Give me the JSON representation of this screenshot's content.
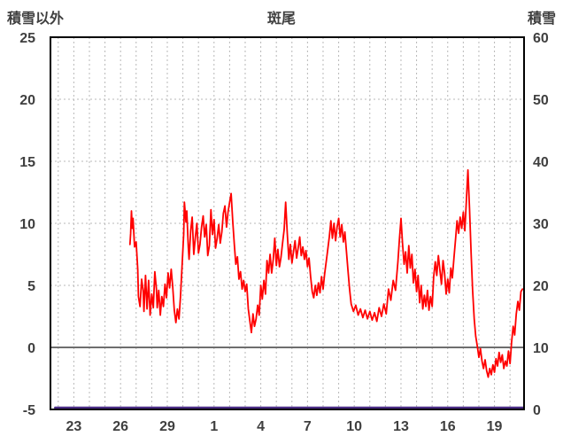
{
  "header": {
    "left_axis_label": "積雪以外",
    "title": "斑尾",
    "right_axis_label": "積雪"
  },
  "colors": {
    "background": "#ffffff",
    "border": "#000000",
    "grid": "#b8b8b8",
    "zero_line": "#6e6e6e",
    "label": "#3f3f3f",
    "series_red": "#ff0000",
    "series_purple": "#4b2d86"
  },
  "chart_data": {
    "type": "line",
    "title": "斑尾",
    "x_domain": [
      21.5,
      51.9
    ],
    "x_ticks": [
      {
        "pos": 23,
        "label": "23"
      },
      {
        "pos": 26,
        "label": "26"
      },
      {
        "pos": 29,
        "label": "29"
      },
      {
        "pos": 32,
        "label": "1"
      },
      {
        "pos": 35,
        "label": "4"
      },
      {
        "pos": 38,
        "label": "7"
      },
      {
        "pos": 41,
        "label": "10"
      },
      {
        "pos": 44,
        "label": "13"
      },
      {
        "pos": 47,
        "label": "16"
      },
      {
        "pos": 50,
        "label": "19"
      }
    ],
    "left_axis": {
      "label": "積雪以外",
      "range": [
        -5,
        25
      ],
      "ticks": [
        25,
        20,
        15,
        10,
        5,
        0,
        -5
      ]
    },
    "right_axis": {
      "label": "積雪",
      "range": [
        0,
        60
      ],
      "ticks": [
        60,
        50,
        40,
        30,
        20,
        10,
        0
      ]
    },
    "grid": {
      "x_step": 1,
      "y_dashed": [
        20,
        15,
        10,
        5
      ],
      "zero_line": 0
    },
    "legend": "none",
    "series": [
      {
        "name": "積雪以外",
        "axis": "left",
        "color": "#ff0000",
        "points": [
          [
            26.6,
            8.3
          ],
          [
            26.65,
            9.2
          ],
          [
            26.7,
            11.0
          ],
          [
            26.75,
            9.6
          ],
          [
            26.8,
            10.4
          ],
          [
            26.9,
            8.1
          ],
          [
            27.0,
            8.5
          ],
          [
            27.1,
            6.3
          ],
          [
            27.15,
            4.1
          ],
          [
            27.25,
            3.3
          ],
          [
            27.35,
            5.5
          ],
          [
            27.45,
            4.6
          ],
          [
            27.5,
            2.9
          ],
          [
            27.6,
            5.8
          ],
          [
            27.7,
            3.1
          ],
          [
            27.8,
            5.4
          ],
          [
            27.9,
            2.6
          ],
          [
            28.0,
            4.3
          ],
          [
            28.1,
            3.2
          ],
          [
            28.2,
            6.1
          ],
          [
            28.3,
            4.7
          ],
          [
            28.35,
            3.2
          ],
          [
            28.45,
            4.6
          ],
          [
            28.55,
            2.6
          ],
          [
            28.65,
            4.1
          ],
          [
            28.75,
            3.3
          ],
          [
            28.85,
            5.1
          ],
          [
            28.95,
            4.0
          ],
          [
            29.05,
            6.0
          ],
          [
            29.15,
            4.8
          ],
          [
            29.25,
            6.3
          ],
          [
            29.35,
            4.9
          ],
          [
            29.45,
            3.0
          ],
          [
            29.55,
            2.0
          ],
          [
            29.65,
            3.1
          ],
          [
            29.75,
            2.3
          ],
          [
            29.85,
            4.1
          ],
          [
            29.95,
            6.6
          ],
          [
            30.05,
            9.1
          ],
          [
            30.1,
            11.7
          ],
          [
            30.2,
            10.1
          ],
          [
            30.25,
            11.0
          ],
          [
            30.35,
            8.1
          ],
          [
            30.4,
            7.1
          ],
          [
            30.5,
            9.4
          ],
          [
            30.6,
            10.5
          ],
          [
            30.7,
            7.5
          ],
          [
            30.8,
            8.9
          ],
          [
            30.9,
            10.0
          ],
          [
            31.0,
            7.6
          ],
          [
            31.1,
            8.3
          ],
          [
            31.2,
            9.7
          ],
          [
            31.3,
            10.6
          ],
          [
            31.4,
            8.9
          ],
          [
            31.5,
            9.9
          ],
          [
            31.6,
            7.4
          ],
          [
            31.7,
            8.2
          ],
          [
            31.8,
            11.1
          ],
          [
            31.9,
            9.1
          ],
          [
            32.0,
            10.3
          ],
          [
            32.1,
            8.0
          ],
          [
            32.2,
            8.8
          ],
          [
            32.3,
            9.9
          ],
          [
            32.4,
            8.4
          ],
          [
            32.5,
            9.3
          ],
          [
            32.6,
            10.8
          ],
          [
            32.7,
            11.4
          ],
          [
            32.8,
            9.7
          ],
          [
            32.9,
            10.9
          ],
          [
            33.0,
            11.7
          ],
          [
            33.1,
            12.4
          ],
          [
            33.2,
            10.2
          ],
          [
            33.3,
            8.3
          ],
          [
            33.4,
            6.7
          ],
          [
            33.5,
            7.3
          ],
          [
            33.6,
            5.5
          ],
          [
            33.7,
            6.1
          ],
          [
            33.8,
            4.7
          ],
          [
            33.9,
            5.4
          ],
          [
            34.0,
            4.5
          ],
          [
            34.1,
            5.1
          ],
          [
            34.2,
            3.1
          ],
          [
            34.3,
            2.1
          ],
          [
            34.4,
            1.2
          ],
          [
            34.5,
            2.7
          ],
          [
            34.6,
            1.7
          ],
          [
            34.7,
            2.3
          ],
          [
            34.8,
            3.4
          ],
          [
            34.9,
            2.6
          ],
          [
            35.0,
            5.0
          ],
          [
            35.1,
            3.9
          ],
          [
            35.2,
            5.4
          ],
          [
            35.3,
            4.3
          ],
          [
            35.4,
            7.0
          ],
          [
            35.5,
            6.0
          ],
          [
            35.6,
            7.5
          ],
          [
            35.7,
            6.0
          ],
          [
            35.8,
            7.1
          ],
          [
            35.9,
            8.8
          ],
          [
            36.0,
            6.6
          ],
          [
            36.1,
            7.9
          ],
          [
            36.2,
            6.5
          ],
          [
            36.3,
            7.3
          ],
          [
            36.4,
            8.4
          ],
          [
            36.5,
            9.5
          ],
          [
            36.6,
            11.7
          ],
          [
            36.7,
            9.2
          ],
          [
            36.8,
            7.1
          ],
          [
            36.9,
            8.3
          ],
          [
            37.0,
            6.8
          ],
          [
            37.1,
            7.7
          ],
          [
            37.2,
            8.6
          ],
          [
            37.3,
            7.2
          ],
          [
            37.4,
            8.0
          ],
          [
            37.5,
            8.9
          ],
          [
            37.6,
            7.4
          ],
          [
            37.7,
            8.1
          ],
          [
            37.8,
            7.1
          ],
          [
            37.9,
            7.8
          ],
          [
            38.0,
            6.5
          ],
          [
            38.1,
            7.2
          ],
          [
            38.2,
            5.7
          ],
          [
            38.3,
            4.5
          ],
          [
            38.4,
            4.0
          ],
          [
            38.5,
            5.0
          ],
          [
            38.6,
            4.2
          ],
          [
            38.7,
            5.2
          ],
          [
            38.8,
            4.4
          ],
          [
            38.9,
            5.7
          ],
          [
            39.0,
            4.7
          ],
          [
            39.1,
            5.9
          ],
          [
            39.25,
            7.4
          ],
          [
            39.4,
            8.9
          ],
          [
            39.5,
            10.2
          ],
          [
            39.6,
            8.8
          ],
          [
            39.7,
            10.0
          ],
          [
            39.8,
            8.6
          ],
          [
            39.9,
            9.7
          ],
          [
            40.0,
            10.4
          ],
          [
            40.1,
            8.9
          ],
          [
            40.2,
            9.9
          ],
          [
            40.3,
            8.5
          ],
          [
            40.4,
            9.3
          ],
          [
            40.5,
            7.7
          ],
          [
            40.6,
            6.2
          ],
          [
            40.7,
            4.7
          ],
          [
            40.8,
            3.5
          ],
          [
            40.95,
            2.9
          ],
          [
            41.1,
            3.4
          ],
          [
            41.25,
            2.6
          ],
          [
            41.4,
            3.1
          ],
          [
            41.55,
            2.4
          ],
          [
            41.7,
            3.0
          ],
          [
            41.85,
            2.3
          ],
          [
            42.0,
            2.9
          ],
          [
            42.15,
            2.2
          ],
          [
            42.3,
            2.8
          ],
          [
            42.45,
            2.1
          ],
          [
            42.6,
            3.2
          ],
          [
            42.75,
            2.5
          ],
          [
            42.9,
            3.5
          ],
          [
            43.05,
            2.7
          ],
          [
            43.2,
            4.7
          ],
          [
            43.35,
            3.8
          ],
          [
            43.5,
            5.4
          ],
          [
            43.65,
            4.6
          ],
          [
            43.8,
            6.9
          ],
          [
            43.9,
            8.7
          ],
          [
            44.0,
            10.4
          ],
          [
            44.1,
            8.4
          ],
          [
            44.2,
            6.7
          ],
          [
            44.3,
            7.7
          ],
          [
            44.4,
            6.0
          ],
          [
            44.5,
            8.2
          ],
          [
            44.6,
            6.4
          ],
          [
            44.7,
            7.5
          ],
          [
            44.8,
            5.2
          ],
          [
            44.9,
            6.3
          ],
          [
            45.0,
            4.5
          ],
          [
            45.1,
            5.8
          ],
          [
            45.2,
            3.6
          ],
          [
            45.3,
            5.0
          ],
          [
            45.4,
            3.1
          ],
          [
            45.5,
            4.2
          ],
          [
            45.6,
            3.3
          ],
          [
            45.7,
            4.6
          ],
          [
            45.8,
            3.0
          ],
          [
            45.9,
            4.1
          ],
          [
            46.0,
            3.3
          ],
          [
            46.1,
            5.7
          ],
          [
            46.2,
            6.9
          ],
          [
            46.3,
            5.8
          ],
          [
            46.4,
            7.4
          ],
          [
            46.5,
            6.2
          ],
          [
            46.6,
            5.1
          ],
          [
            46.7,
            7.0
          ],
          [
            46.8,
            6.0
          ],
          [
            46.9,
            4.3
          ],
          [
            47.0,
            5.5
          ],
          [
            47.1,
            4.4
          ],
          [
            47.2,
            6.4
          ],
          [
            47.3,
            5.6
          ],
          [
            47.4,
            7.2
          ],
          [
            47.5,
            8.7
          ],
          [
            47.6,
            10.2
          ],
          [
            47.7,
            9.2
          ],
          [
            47.8,
            10.5
          ],
          [
            47.9,
            9.6
          ],
          [
            48.0,
            10.9
          ],
          [
            48.1,
            9.4
          ],
          [
            48.2,
            11.9
          ],
          [
            48.3,
            14.3
          ],
          [
            48.4,
            11.2
          ],
          [
            48.5,
            7.6
          ],
          [
            48.6,
            4.6
          ],
          [
            48.7,
            2.3
          ],
          [
            48.8,
            0.9
          ],
          [
            48.9,
            0.1
          ],
          [
            49.0,
            -0.8
          ],
          [
            49.1,
            -0.1
          ],
          [
            49.2,
            -1.1
          ],
          [
            49.3,
            -1.7
          ],
          [
            49.4,
            -1.0
          ],
          [
            49.5,
            -1.9
          ],
          [
            49.6,
            -2.4
          ],
          [
            49.7,
            -1.7
          ],
          [
            49.8,
            -2.2
          ],
          [
            49.9,
            -1.4
          ],
          [
            50.0,
            -2.0
          ],
          [
            50.1,
            -0.9
          ],
          [
            50.2,
            -1.5
          ],
          [
            50.3,
            -0.4
          ],
          [
            50.4,
            -1.2
          ],
          [
            50.5,
            -0.6
          ],
          [
            50.6,
            -1.7
          ],
          [
            50.7,
            -1.1
          ],
          [
            50.8,
            -1.5
          ],
          [
            50.9,
            -0.3
          ],
          [
            51.0,
            -1.3
          ],
          [
            51.1,
            0.4
          ],
          [
            51.2,
            1.7
          ],
          [
            51.3,
            1.0
          ],
          [
            51.4,
            2.7
          ],
          [
            51.5,
            3.7
          ],
          [
            51.6,
            3.0
          ],
          [
            51.7,
            4.5
          ],
          [
            51.8,
            4.7
          ]
        ]
      },
      {
        "name": "積雪",
        "axis": "right",
        "color": "#4b2d86",
        "points": [
          [
            21.8,
            0
          ],
          [
            51.85,
            0
          ]
        ]
      }
    ]
  }
}
